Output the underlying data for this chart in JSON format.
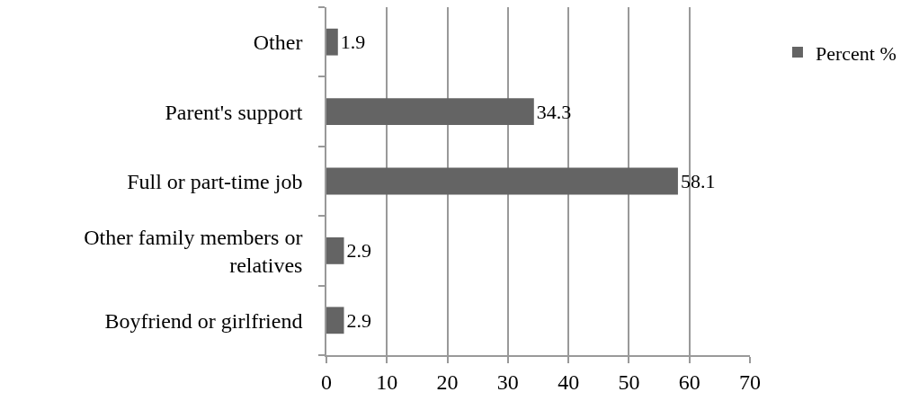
{
  "chart_data": {
    "type": "bar",
    "orientation": "horizontal",
    "categories": [
      "Other",
      "Parent's support",
      "Full or part-time job",
      "Other family members or relatives",
      "Boyfriend or girlfriend"
    ],
    "series": [
      {
        "name": "Percent %",
        "color": "#646464",
        "values": [
          1.9,
          34.3,
          58.1,
          2.9,
          2.9
        ]
      }
    ],
    "xlim": [
      0,
      70
    ],
    "xticks": [
      0,
      10,
      20,
      30,
      40,
      50,
      60,
      70
    ],
    "grid": "x",
    "legend": "top right",
    "data_labels": true
  }
}
